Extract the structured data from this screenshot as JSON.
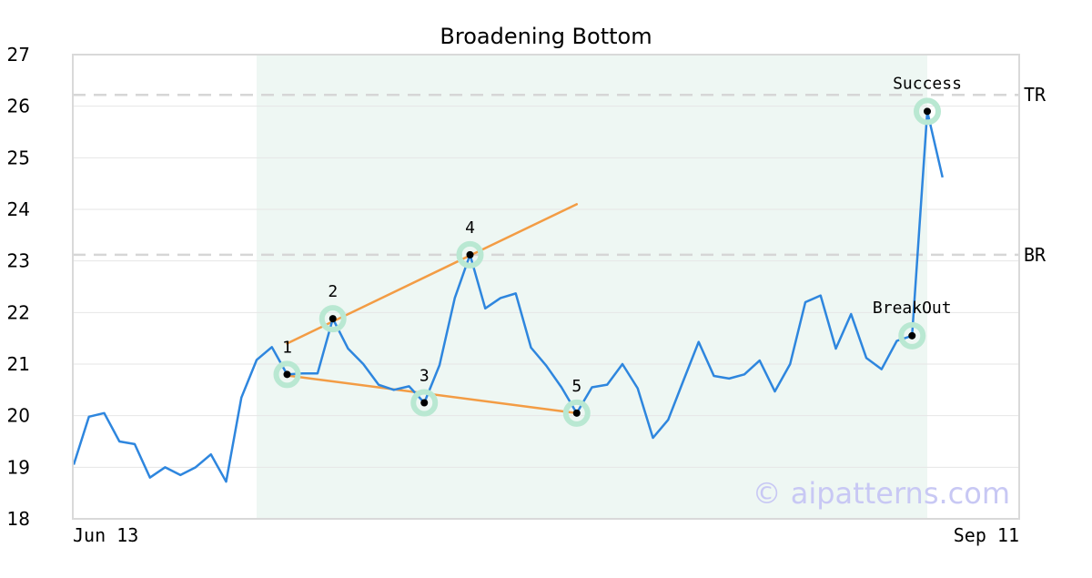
{
  "chart_data": {
    "type": "line",
    "title": "Broadening Bottom",
    "xlabel": "",
    "ylabel": "",
    "x_tick_labels": [
      "Jun 13",
      "Sep 11"
    ],
    "ylim": [
      18,
      27
    ],
    "yticks": [
      18,
      19,
      20,
      21,
      22,
      23,
      24,
      25,
      26,
      27
    ],
    "grid": true,
    "pattern_region": {
      "start_index": 12,
      "end_index": 56
    },
    "series": [
      {
        "values": [
          19.05,
          19.98,
          20.05,
          19.5,
          19.45,
          18.8,
          19.0,
          18.85,
          19.0,
          19.25,
          18.72,
          20.35,
          21.08,
          21.33,
          20.8,
          20.82,
          20.82,
          21.88,
          21.3,
          21.0,
          20.6,
          20.5,
          20.57,
          20.25,
          20.98,
          22.28,
          23.12,
          22.08,
          22.28,
          22.37,
          21.32,
          20.97,
          20.55,
          20.05,
          20.55,
          20.6,
          21.0,
          20.53,
          19.57,
          19.92,
          20.68,
          21.43,
          20.77,
          20.72,
          20.8,
          21.07,
          20.47,
          21.0,
          22.2,
          22.33,
          21.3,
          21.97,
          21.12,
          20.9,
          21.45,
          21.55,
          25.9,
          24.62
        ]
      }
    ],
    "pivots": [
      {
        "label": "1",
        "index": 14,
        "value": 20.8
      },
      {
        "label": "2",
        "index": 17,
        "value": 21.88
      },
      {
        "label": "3",
        "index": 23,
        "value": 20.25
      },
      {
        "label": "4",
        "index": 26,
        "value": 23.12
      },
      {
        "label": "5",
        "index": 33,
        "value": 20.05
      },
      {
        "label": "BreakOut",
        "index": 55,
        "value": 21.55
      },
      {
        "label": "Success",
        "index": 56,
        "value": 25.9
      }
    ],
    "trendlines": [
      {
        "from": {
          "index": 14,
          "value": 21.4
        },
        "to": {
          "index": 33,
          "value": 24.1
        }
      },
      {
        "from": {
          "index": 14,
          "value": 20.78
        },
        "to": {
          "index": 33,
          "value": 20.05
        }
      }
    ],
    "reference_lines": [
      {
        "label": "TR",
        "value": 26.22
      },
      {
        "label": "BR",
        "value": 23.12
      }
    ],
    "watermark": "© aipatterns.com",
    "colors": {
      "price": "#2e86de",
      "trend": "#f39c44",
      "pivot_halo": "#b9e8d2",
      "pivot_dot": "#000000",
      "region": "#eef7f3",
      "reference": "#d6d6d6",
      "grid": "#e6e6e6",
      "frame": "#d9d9d9",
      "watermark": "#c8c8f4"
    }
  }
}
